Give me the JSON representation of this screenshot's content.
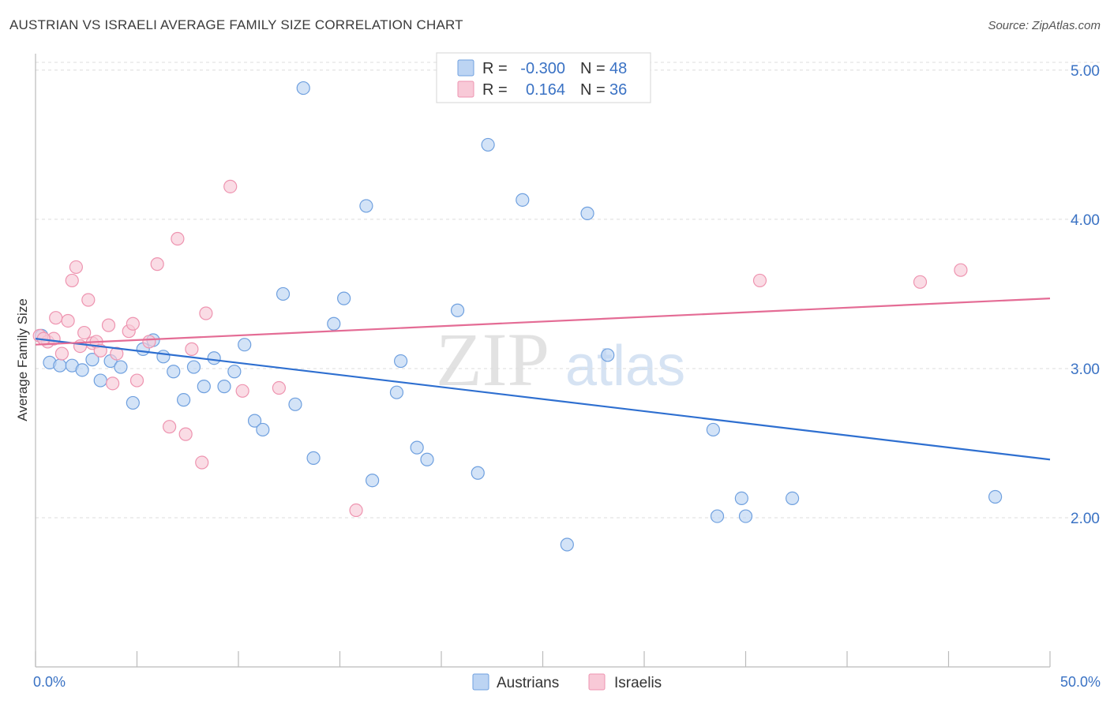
{
  "header": {
    "title": "AUSTRIAN VS ISRAELI AVERAGE FAMILY SIZE CORRELATION CHART",
    "source": "Source: ZipAtlas.com"
  },
  "watermark": {
    "zip": "ZIP",
    "atlas": "atlas"
  },
  "legend": {
    "rows": [
      {
        "r_label": "R =",
        "r_value": "-0.300",
        "n_label": "N =",
        "n_value": "48"
      },
      {
        "r_label": "R =",
        "r_value": "0.164",
        "n_label": "N =",
        "n_value": "36"
      }
    ]
  },
  "bottom_legend": {
    "austrians": "Austrians",
    "israelis": "Israelis"
  },
  "colors": {
    "austrian_fill": "#bcd4f3",
    "austrian_stroke": "#6fa0df",
    "austrian_line": "#2e6fd0",
    "israeli_fill": "#f8c9d7",
    "israeli_stroke": "#ee94b0",
    "israeli_line": "#e46c95",
    "tick_text": "#3a72c4"
  },
  "chart_data": {
    "type": "scatter",
    "title": "AUSTRIAN VS ISRAELI AVERAGE FAMILY SIZE CORRELATION CHART",
    "xlabel": "",
    "ylabel": "Average Family Size",
    "xlim": [
      0,
      50
    ],
    "ylim": [
      1.0,
      5.1
    ],
    "x_tick_labels": [
      "0.0%",
      "50.0%"
    ],
    "y_ticks": [
      2.0,
      3.0,
      4.0,
      5.0
    ],
    "y_tick_labels": [
      "2.00",
      "3.00",
      "4.00",
      "5.00"
    ],
    "grid": true,
    "series": [
      {
        "name": "Austrians",
        "r": -0.3,
        "n": 48,
        "trend": {
          "x": [
            0,
            50
          ],
          "y": [
            3.2,
            2.39
          ]
        },
        "points": [
          [
            0.3,
            3.22
          ],
          [
            0.7,
            3.04
          ],
          [
            1.2,
            3.02
          ],
          [
            1.8,
            3.02
          ],
          [
            2.3,
            2.99
          ],
          [
            2.8,
            3.06
          ],
          [
            3.2,
            2.92
          ],
          [
            3.7,
            3.05
          ],
          [
            4.2,
            3.01
          ],
          [
            4.8,
            2.77
          ],
          [
            5.3,
            3.13
          ],
          [
            5.8,
            3.19
          ],
          [
            6.3,
            3.08
          ],
          [
            6.8,
            2.98
          ],
          [
            7.3,
            2.79
          ],
          [
            7.8,
            3.01
          ],
          [
            8.3,
            2.88
          ],
          [
            8.8,
            3.07
          ],
          [
            9.3,
            2.88
          ],
          [
            9.8,
            2.98
          ],
          [
            10.3,
            3.16
          ],
          [
            10.8,
            2.65
          ],
          [
            11.2,
            2.59
          ],
          [
            12.2,
            3.5
          ],
          [
            12.8,
            2.76
          ],
          [
            13.2,
            4.88
          ],
          [
            13.7,
            2.4
          ],
          [
            14.7,
            3.3
          ],
          [
            15.2,
            3.47
          ],
          [
            16.3,
            4.09
          ],
          [
            16.6,
            2.25
          ],
          [
            17.8,
            2.84
          ],
          [
            18.0,
            3.05
          ],
          [
            18.8,
            2.47
          ],
          [
            19.3,
            2.39
          ],
          [
            20.8,
            3.39
          ],
          [
            21.8,
            2.3
          ],
          [
            22.3,
            4.5
          ],
          [
            24.0,
            4.13
          ],
          [
            26.2,
            1.82
          ],
          [
            27.2,
            4.04
          ],
          [
            28.2,
            3.09
          ],
          [
            33.4,
            2.59
          ],
          [
            33.6,
            2.01
          ],
          [
            34.8,
            2.13
          ],
          [
            35.0,
            2.01
          ],
          [
            37.3,
            2.13
          ],
          [
            47.3,
            2.14
          ]
        ]
      },
      {
        "name": "Israelis",
        "r": 0.164,
        "n": 36,
        "trend": {
          "x": [
            0,
            50
          ],
          "y": [
            3.16,
            3.47
          ]
        },
        "points": [
          [
            0.2,
            3.22
          ],
          [
            0.6,
            3.18
          ],
          [
            0.9,
            3.2
          ],
          [
            1.0,
            3.34
          ],
          [
            1.3,
            3.1
          ],
          [
            1.6,
            3.32
          ],
          [
            1.8,
            3.59
          ],
          [
            2.0,
            3.68
          ],
          [
            2.2,
            3.15
          ],
          [
            2.4,
            3.24
          ],
          [
            2.6,
            3.46
          ],
          [
            2.8,
            3.17
          ],
          [
            3.0,
            3.18
          ],
          [
            3.2,
            3.12
          ],
          [
            3.6,
            3.29
          ],
          [
            3.8,
            2.9
          ],
          [
            4.0,
            3.1
          ],
          [
            4.6,
            3.25
          ],
          [
            4.8,
            3.3
          ],
          [
            5.0,
            2.92
          ],
          [
            5.6,
            3.18
          ],
          [
            6.0,
            3.7
          ],
          [
            6.6,
            2.61
          ],
          [
            7.0,
            3.87
          ],
          [
            7.4,
            2.56
          ],
          [
            7.7,
            3.13
          ],
          [
            8.2,
            2.37
          ],
          [
            8.4,
            3.37
          ],
          [
            9.6,
            4.22
          ],
          [
            10.2,
            2.85
          ],
          [
            12.0,
            2.87
          ],
          [
            15.8,
            2.05
          ],
          [
            35.7,
            3.59
          ],
          [
            43.6,
            3.58
          ],
          [
            45.6,
            3.66
          ],
          [
            0.4,
            3.2
          ]
        ]
      }
    ]
  }
}
